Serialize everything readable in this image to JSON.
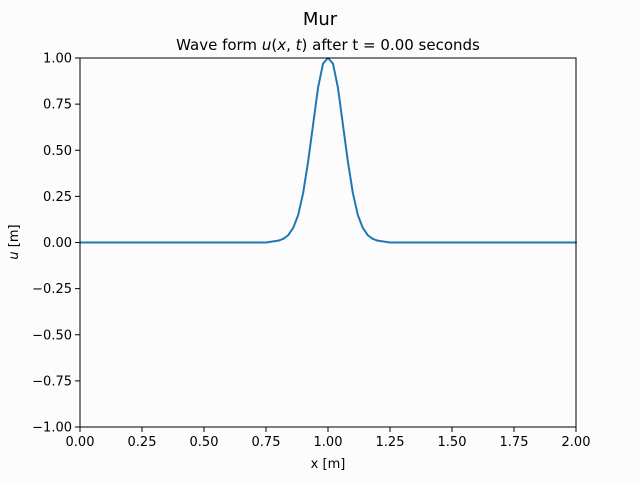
{
  "figure": {
    "suptitle": "Mur",
    "background": "#fcfcfc"
  },
  "chart_data": {
    "type": "line",
    "title_prefix": "Wave form ",
    "title_math_u": "u",
    "title_math_x": "x",
    "title_math_t": "t",
    "title_suffix": " after t = 0.00 seconds",
    "xlabel": "x [m]",
    "ylabel_math": "u",
    "ylabel_unit": " [m]",
    "xlim": [
      0,
      2
    ],
    "ylim": [
      -1,
      1
    ],
    "xticks": [
      0,
      0.25,
      0.5,
      0.75,
      1.0,
      1.25,
      1.5,
      1.75,
      2.0
    ],
    "xtick_labels": [
      "0.00",
      "0.25",
      "0.50",
      "0.75",
      "1.00",
      "1.25",
      "1.50",
      "1.75",
      "2.00"
    ],
    "yticks": [
      -1.0,
      -0.75,
      -0.5,
      -0.25,
      0,
      0.25,
      0.5,
      0.75,
      1.0
    ],
    "ytick_labels": [
      "−1.00",
      "−0.75",
      "−0.50",
      "−0.25",
      "0.00",
      "0.25",
      "0.50",
      "0.75",
      "1.00"
    ],
    "grid": false,
    "series": [
      {
        "name": "u(x, t)",
        "color": "#1f77b4",
        "x": [
          0.0,
          0.1,
          0.2,
          0.3,
          0.4,
          0.5,
          0.6,
          0.7,
          0.75,
          0.8,
          0.82,
          0.84,
          0.86,
          0.88,
          0.9,
          0.92,
          0.94,
          0.96,
          0.98,
          1.0,
          1.02,
          1.04,
          1.06,
          1.08,
          1.1,
          1.12,
          1.14,
          1.16,
          1.18,
          1.2,
          1.25,
          1.3,
          1.4,
          1.5,
          1.6,
          1.7,
          1.8,
          1.9,
          2.0
        ],
        "y": [
          0.0,
          0.0,
          0.0,
          0.0,
          0.0,
          0.0,
          0.0,
          0.0,
          0.0,
          0.01,
          0.02,
          0.04,
          0.08,
          0.15,
          0.27,
          0.44,
          0.64,
          0.84,
          0.97,
          1.0,
          0.97,
          0.84,
          0.64,
          0.44,
          0.27,
          0.15,
          0.08,
          0.04,
          0.02,
          0.01,
          0.0,
          0.0,
          0.0,
          0.0,
          0.0,
          0.0,
          0.0,
          0.0,
          0.0
        ]
      }
    ]
  }
}
